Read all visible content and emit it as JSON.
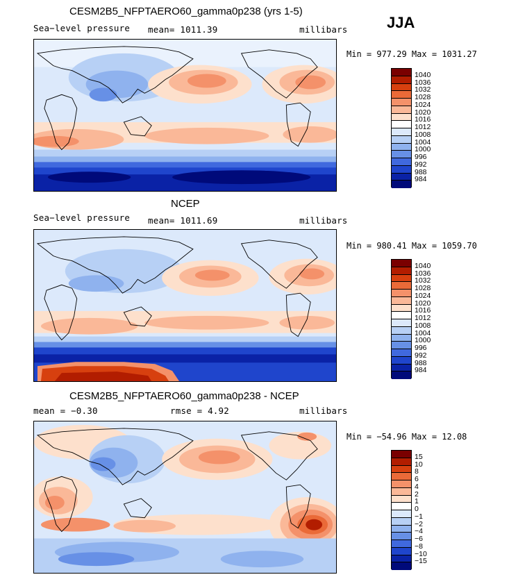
{
  "season": "JJA",
  "panels": [
    {
      "title": "CESM2B5_NFPTAERO60_gamma0p238 (yrs 1-5)",
      "left_label": "Sea−level pressure",
      "center_label": "mean= 1011.39",
      "right_label": "millibars",
      "minmax": "Min = 977.29 Max = 1031.27",
      "colorbar_labels": [
        "1040",
        "1036",
        "1032",
        "1028",
        "1024",
        "1020",
        "1016",
        "1012",
        "1008",
        "1004",
        "1000",
        "996",
        "992",
        "988",
        "984"
      ]
    },
    {
      "title": "NCEP",
      "left_label": "Sea−level pressure",
      "center_label": "mean= 1011.69",
      "right_label": "millibars",
      "minmax": "Min = 980.41 Max = 1059.70",
      "colorbar_labels": [
        "1040",
        "1036",
        "1032",
        "1028",
        "1024",
        "1020",
        "1016",
        "1012",
        "1008",
        "1004",
        "1000",
        "996",
        "992",
        "988",
        "984"
      ]
    },
    {
      "title": "CESM2B5_NFPTAERO60_gamma0p238 - NCEP",
      "left_label": "mean =  −0.30",
      "center_label": "rmse =    4.92",
      "right_label": "millibars",
      "minmax": "Min = −54.96 Max =  12.08",
      "colorbar_labels": [
        "15",
        "10",
        "8",
        "6",
        "4",
        "2",
        "1",
        "0",
        "−1",
        "−2",
        "−4",
        "−6",
        "−8",
        "−10",
        "−15"
      ]
    }
  ],
  "colors": {
    "abs_scale": [
      "#7a0000",
      "#b21d00",
      "#d7400f",
      "#ea6a38",
      "#f4916a",
      "#fab898",
      "#fde0cc",
      "#ffffff",
      "#dce9fb",
      "#b7d0f5",
      "#8fb2ee",
      "#6790e6",
      "#4069de",
      "#1f45cc",
      "#0a22a6",
      "#000a7a"
    ],
    "diff_scale": [
      "#7a0000",
      "#b21d00",
      "#d7400f",
      "#ea6a38",
      "#f4916a",
      "#fab898",
      "#fde0cc",
      "#ffffff",
      "#dce9fb",
      "#b7d0f5",
      "#8fb2ee",
      "#6790e6",
      "#4069de",
      "#1f45cc",
      "#0a22a6",
      "#000a7a"
    ]
  }
}
